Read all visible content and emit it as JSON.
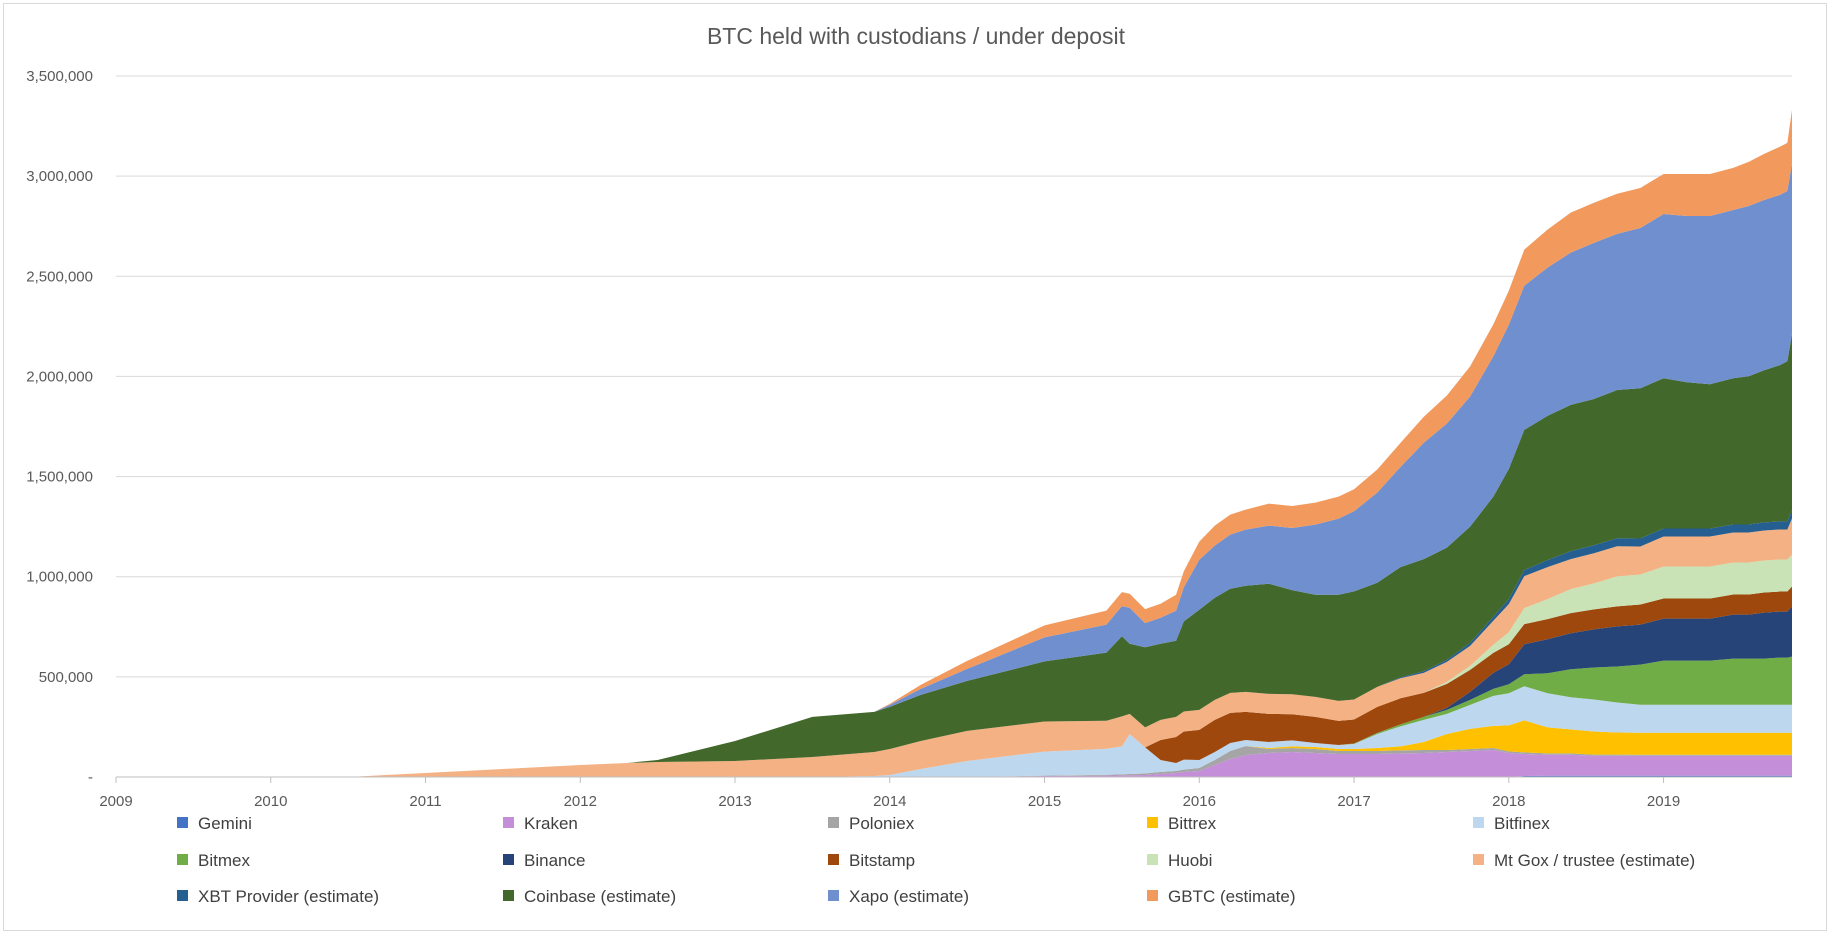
{
  "chart_data": {
    "type": "area",
    "stacked": true,
    "title": "BTC held with custodians / under deposit",
    "xlabel": "",
    "ylabel": "",
    "ylim": [
      0,
      3500000
    ],
    "y_ticks": [
      0,
      500000,
      1000000,
      1500000,
      2000000,
      2500000,
      3000000,
      3500000
    ],
    "y_tick_labels": [
      "-",
      "500,000",
      "1,000,000",
      "1,500,000",
      "2,000,000",
      "2,500,000",
      "3,000,000",
      "3,500,000"
    ],
    "x_range": [
      2009.0,
      2019.83
    ],
    "x_ticks": [
      "2009",
      "2010",
      "2011",
      "2012",
      "2013",
      "2014",
      "2015",
      "2016",
      "2017",
      "2018",
      "2019"
    ],
    "grid": "horizontal",
    "legend_position": "bottom",
    "x": [
      2009.0,
      2010.0,
      2010.5,
      2011.0,
      2011.5,
      2012.0,
      2012.3,
      2012.5,
      2013.0,
      2013.5,
      2013.9,
      2014.0,
      2014.2,
      2014.5,
      2015.0,
      2015.4,
      2015.5,
      2015.55,
      2015.65,
      2015.75,
      2015.85,
      2015.9,
      2016.0,
      2016.1,
      2016.2,
      2016.3,
      2016.45,
      2016.6,
      2016.75,
      2016.9,
      2017.0,
      2017.15,
      2017.3,
      2017.45,
      2017.6,
      2017.75,
      2017.9,
      2018.0,
      2018.1,
      2018.25,
      2018.4,
      2018.55,
      2018.7,
      2018.85,
      2019.0,
      2019.15,
      2019.3,
      2019.45,
      2019.55,
      2019.65,
      2019.75,
      2019.8,
      2019.83
    ],
    "series": [
      {
        "name": "Gemini",
        "color": "#4472c4",
        "values": [
          0,
          0,
          0,
          0,
          0,
          0,
          0,
          0,
          0,
          0,
          0,
          0,
          0,
          0,
          0,
          0,
          0,
          0,
          0,
          0,
          0,
          0,
          0,
          0,
          0,
          0,
          0,
          0,
          0,
          0,
          0,
          0,
          0,
          0,
          0,
          0,
          0,
          0,
          5000,
          6000,
          6000,
          6000,
          6000,
          6000,
          6000,
          6000,
          6000,
          6000,
          6000,
          6000,
          6000,
          6000,
          6000
        ]
      },
      {
        "name": "Kraken",
        "color": "#c48fd8",
        "values": [
          0,
          0,
          0,
          0,
          0,
          0,
          0,
          0,
          0,
          0,
          0,
          0,
          0,
          0,
          5000,
          7000,
          8000,
          9000,
          10000,
          15000,
          20000,
          25000,
          30000,
          60000,
          90000,
          110000,
          120000,
          125000,
          120000,
          115000,
          115000,
          115000,
          118000,
          120000,
          125000,
          130000,
          135000,
          120000,
          110000,
          105000,
          105000,
          100000,
          100000,
          100000,
          100000,
          100000,
          100000,
          100000,
          100000,
          100000,
          100000,
          100000,
          100000
        ]
      },
      {
        "name": "Poloniex",
        "color": "#a5a5a5",
        "values": [
          0,
          0,
          0,
          0,
          0,
          0,
          0,
          0,
          0,
          0,
          0,
          0,
          0,
          0,
          2000,
          4000,
          5000,
          6000,
          8000,
          10000,
          10000,
          12000,
          15000,
          25000,
          40000,
          45000,
          20000,
          20000,
          20000,
          15000,
          15000,
          15000,
          15000,
          15000,
          10000,
          10000,
          10000,
          8000,
          8000,
          7000,
          7000,
          6000,
          6000,
          5000,
          5000,
          5000,
          5000,
          5000,
          5000,
          5000,
          5000,
          5000,
          5000
        ]
      },
      {
        "name": "Bittrex",
        "color": "#ffc000",
        "values": [
          0,
          0,
          0,
          0,
          0,
          0,
          0,
          0,
          0,
          0,
          0,
          0,
          0,
          0,
          0,
          0,
          0,
          0,
          0,
          0,
          0,
          0,
          0,
          0,
          0,
          0,
          5000,
          8000,
          10000,
          10000,
          10000,
          15000,
          20000,
          40000,
          80000,
          100000,
          110000,
          130000,
          160000,
          130000,
          120000,
          115000,
          110000,
          110000,
          110000,
          110000,
          110000,
          110000,
          110000,
          110000,
          110000,
          110000,
          110000
        ]
      },
      {
        "name": "Bitfinex",
        "color": "#bdd7ee",
        "values": [
          0,
          0,
          0,
          0,
          0,
          0,
          0,
          0,
          0,
          0,
          5000,
          10000,
          40000,
          80000,
          120000,
          130000,
          140000,
          200000,
          130000,
          60000,
          40000,
          50000,
          40000,
          40000,
          40000,
          30000,
          30000,
          30000,
          20000,
          20000,
          25000,
          70000,
          100000,
          110000,
          100000,
          120000,
          150000,
          160000,
          170000,
          170000,
          160000,
          160000,
          150000,
          140000,
          140000,
          140000,
          140000,
          140000,
          140000,
          140000,
          140000,
          140000,
          140000
        ]
      },
      {
        "name": "Bitmex",
        "color": "#70ad47",
        "values": [
          0,
          0,
          0,
          0,
          0,
          0,
          0,
          0,
          0,
          0,
          0,
          0,
          0,
          0,
          0,
          0,
          0,
          0,
          0,
          0,
          0,
          0,
          0,
          0,
          0,
          0,
          0,
          0,
          0,
          0,
          2000,
          5000,
          10000,
          15000,
          20000,
          25000,
          35000,
          45000,
          60000,
          100000,
          140000,
          160000,
          180000,
          200000,
          220000,
          220000,
          220000,
          230000,
          230000,
          230000,
          235000,
          235000,
          240000
        ]
      },
      {
        "name": "Binance",
        "color": "#264478",
        "values": [
          0,
          0,
          0,
          0,
          0,
          0,
          0,
          0,
          0,
          0,
          0,
          0,
          0,
          0,
          0,
          0,
          0,
          0,
          0,
          0,
          0,
          0,
          0,
          0,
          0,
          0,
          0,
          0,
          0,
          0,
          0,
          0,
          0,
          0,
          10000,
          40000,
          80000,
          100000,
          150000,
          170000,
          180000,
          190000,
          200000,
          200000,
          210000,
          210000,
          210000,
          220000,
          220000,
          230000,
          230000,
          230000,
          250000
        ]
      },
      {
        "name": "Bitstamp",
        "color": "#9e480e",
        "values": [
          0,
          0,
          0,
          0,
          0,
          0,
          0,
          0,
          0,
          0,
          0,
          0,
          0,
          0,
          0,
          0,
          0,
          0,
          0,
          100000,
          130000,
          140000,
          150000,
          160000,
          150000,
          140000,
          140000,
          130000,
          130000,
          120000,
          120000,
          130000,
          130000,
          120000,
          120000,
          110000,
          100000,
          100000,
          100000,
          100000,
          100000,
          100000,
          100000,
          100000,
          100000,
          100000,
          100000,
          100000,
          100000,
          100000,
          100000,
          100000,
          100000
        ]
      },
      {
        "name": "Huobi",
        "color": "#c9e3b6",
        "values": [
          0,
          0,
          0,
          0,
          0,
          0,
          0,
          0,
          0,
          0,
          0,
          0,
          0,
          0,
          0,
          0,
          0,
          0,
          0,
          0,
          0,
          0,
          0,
          0,
          0,
          0,
          0,
          0,
          0,
          0,
          0,
          0,
          0,
          0,
          10000,
          20000,
          40000,
          60000,
          80000,
          100000,
          120000,
          130000,
          150000,
          150000,
          160000,
          160000,
          160000,
          160000,
          160000,
          160000,
          160000,
          160000,
          160000
        ]
      },
      {
        "name": "Mt Gox / trustee (estimate)",
        "color": "#f4b183",
        "values": [
          0,
          0,
          0,
          20000,
          40000,
          60000,
          70000,
          75000,
          80000,
          100000,
          120000,
          130000,
          140000,
          150000,
          150000,
          140000,
          150000,
          100000,
          100000,
          100000,
          100000,
          100000,
          100000,
          100000,
          100000,
          100000,
          100000,
          100000,
          100000,
          100000,
          100000,
          100000,
          100000,
          100000,
          100000,
          100000,
          120000,
          140000,
          160000,
          160000,
          150000,
          150000,
          150000,
          140000,
          150000,
          150000,
          150000,
          150000,
          150000,
          150000,
          150000,
          150000,
          180000
        ]
      },
      {
        "name": "XBT Provider (estimate)",
        "color": "#255e91",
        "values": [
          0,
          0,
          0,
          0,
          0,
          0,
          0,
          0,
          0,
          0,
          0,
          0,
          0,
          0,
          0,
          0,
          0,
          0,
          0,
          0,
          0,
          0,
          0,
          0,
          0,
          0,
          0,
          0,
          0,
          0,
          0,
          0,
          5000,
          8000,
          10000,
          15000,
          20000,
          25000,
          30000,
          35000,
          40000,
          40000,
          40000,
          40000,
          40000,
          40000,
          40000,
          40000,
          40000,
          40000,
          40000,
          40000,
          40000
        ]
      },
      {
        "name": "Coinbase (estimate)",
        "color": "#43682b",
        "values": [
          0,
          0,
          0,
          0,
          0,
          0,
          0,
          10000,
          100000,
          200000,
          200000,
          210000,
          230000,
          250000,
          300000,
          340000,
          400000,
          350000,
          400000,
          380000,
          380000,
          450000,
          500000,
          510000,
          520000,
          530000,
          550000,
          520000,
          510000,
          530000,
          540000,
          520000,
          550000,
          560000,
          560000,
          580000,
          600000,
          650000,
          700000,
          720000,
          730000,
          730000,
          740000,
          750000,
          750000,
          730000,
          720000,
          730000,
          740000,
          760000,
          780000,
          800000,
          880000
        ]
      },
      {
        "name": "Xapo (estimate)",
        "color": "#6f8fcf",
        "values": [
          0,
          0,
          0,
          0,
          0,
          0,
          0,
          0,
          0,
          0,
          0,
          10000,
          30000,
          60000,
          120000,
          140000,
          150000,
          180000,
          120000,
          130000,
          150000,
          170000,
          250000,
          260000,
          270000,
          280000,
          290000,
          310000,
          350000,
          380000,
          400000,
          450000,
          500000,
          580000,
          620000,
          650000,
          700000,
          720000,
          720000,
          740000,
          760000,
          780000,
          780000,
          800000,
          820000,
          830000,
          840000,
          840000,
          850000,
          850000,
          850000,
          850000,
          850000
        ]
      },
      {
        "name": "GBTC (estimate)",
        "color": "#f29a5e",
        "values": [
          0,
          0,
          0,
          0,
          0,
          0,
          0,
          0,
          0,
          0,
          0,
          5000,
          20000,
          40000,
          60000,
          70000,
          70000,
          70000,
          70000,
          70000,
          80000,
          80000,
          90000,
          100000,
          100000,
          100000,
          110000,
          110000,
          110000,
          110000,
          110000,
          115000,
          120000,
          130000,
          140000,
          150000,
          160000,
          170000,
          180000,
          190000,
          200000,
          200000,
          200000,
          200000,
          200000,
          210000,
          210000,
          210000,
          220000,
          230000,
          240000,
          240000,
          270000
        ]
      }
    ]
  }
}
